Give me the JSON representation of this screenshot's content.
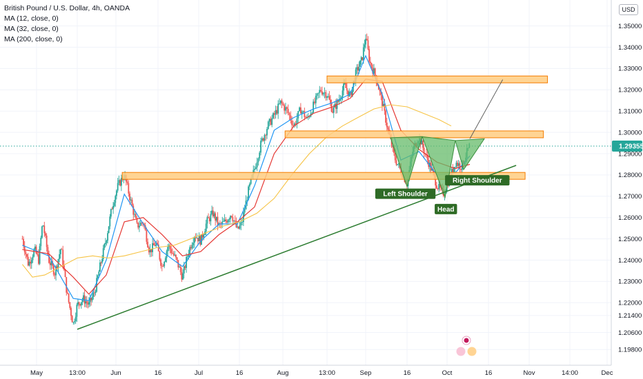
{
  "header": {
    "title": "British Pound / U.S. Dollar, 4h, OANDA",
    "indicators": [
      "MA (12, close, 0)",
      "MA (32, close, 0)",
      "MA (200, close, 0)"
    ],
    "currency": "USD"
  },
  "colors": {
    "up": "#26a69a",
    "down": "#ef5350",
    "ma12": "#2196f3",
    "ma32": "#e53935",
    "ma200": "#f6c344",
    "zone_fill": "#ffcc80",
    "zone_stroke": "#f57c00",
    "pattern_fill": "#66bb6a",
    "pattern_stroke": "#388e3c",
    "trendline": "#2e7d32",
    "label_bg": "#2e6b26",
    "price_tag": "#26a69a"
  },
  "chart_data": {
    "type": "candlestick",
    "title": "British Pound / U.S. Dollar, 4h, OANDA",
    "xlabel": "",
    "ylabel": "",
    "ylim": [
      1.1955,
      1.357
    ],
    "price_axis_ticks": [
      "1.35000",
      "1.34000",
      "1.33000",
      "1.32000",
      "1.31000",
      "1.30000",
      "1.29000",
      "1.28000",
      "1.27000",
      "1.26000",
      "1.25000",
      "1.24000",
      "1.23000",
      "1.22000",
      "1.21400",
      "1.20600",
      "1.19800"
    ],
    "time_axis_ticks": [
      {
        "label": "May",
        "t": 0
      },
      {
        "label": "13:00",
        "t": 1
      },
      {
        "label": "Jun",
        "t": 2
      },
      {
        "label": "16",
        "t": 3
      },
      {
        "label": "Jul",
        "t": 4
      },
      {
        "label": "16",
        "t": 5
      },
      {
        "label": "Aug",
        "t": 6
      },
      {
        "label": "13:00",
        "t": 7
      },
      {
        "label": "Sep",
        "t": 8
      },
      {
        "label": "16",
        "t": 9
      },
      {
        "label": "Oct",
        "t": 10
      },
      {
        "label": "16",
        "t": 11
      },
      {
        "label": "Nov",
        "t": 12
      },
      {
        "label": "14:00",
        "t": 13
      },
      {
        "label": "Dec",
        "t": 14
      }
    ],
    "last_price": {
      "label": "1.29355",
      "value": 1.29355
    },
    "price_path": [
      [
        -0.35,
        1.25
      ],
      [
        -0.2,
        1.238
      ],
      [
        -0.05,
        1.245
      ],
      [
        0.05,
        1.24
      ],
      [
        0.15,
        1.258
      ],
      [
        0.3,
        1.24
      ],
      [
        0.45,
        1.234
      ],
      [
        0.6,
        1.246
      ],
      [
        0.75,
        1.224
      ],
      [
        0.9,
        1.21
      ],
      [
        1.0,
        1.219
      ],
      [
        1.15,
        1.222
      ],
      [
        1.3,
        1.219
      ],
      [
        1.45,
        1.225
      ],
      [
        1.6,
        1.238
      ],
      [
        1.75,
        1.25
      ],
      [
        1.9,
        1.265
      ],
      [
        2.05,
        1.275
      ],
      [
        2.2,
        1.28
      ],
      [
        2.35,
        1.268
      ],
      [
        2.5,
        1.256
      ],
      [
        2.65,
        1.258
      ],
      [
        2.8,
        1.244
      ],
      [
        2.95,
        1.248
      ],
      [
        3.1,
        1.237
      ],
      [
        3.25,
        1.247
      ],
      [
        3.45,
        1.24
      ],
      [
        3.6,
        1.232
      ],
      [
        3.75,
        1.244
      ],
      [
        3.9,
        1.252
      ],
      [
        4.05,
        1.249
      ],
      [
        4.2,
        1.258
      ],
      [
        4.35,
        1.262
      ],
      [
        4.5,
        1.256
      ],
      [
        4.65,
        1.258
      ],
      [
        4.8,
        1.262
      ],
      [
        4.95,
        1.254
      ],
      [
        5.05,
        1.257
      ],
      [
        5.2,
        1.272
      ],
      [
        5.35,
        1.283
      ],
      [
        5.5,
        1.295
      ],
      [
        5.65,
        1.303
      ],
      [
        5.8,
        1.308
      ],
      [
        5.95,
        1.314
      ],
      [
        6.1,
        1.31
      ],
      [
        6.25,
        1.303
      ],
      [
        6.4,
        1.311
      ],
      [
        6.55,
        1.306
      ],
      [
        6.7,
        1.313
      ],
      [
        6.85,
        1.32
      ],
      [
        7.0,
        1.318
      ],
      [
        7.15,
        1.31
      ],
      [
        7.3,
        1.315
      ],
      [
        7.45,
        1.322
      ],
      [
        7.6,
        1.317
      ],
      [
        7.75,
        1.328
      ],
      [
        7.9,
        1.334
      ],
      [
        8.0,
        1.345
      ],
      [
        8.1,
        1.333
      ],
      [
        8.25,
        1.326
      ],
      [
        8.4,
        1.314
      ],
      [
        8.55,
        1.3
      ],
      [
        8.7,
        1.288
      ],
      [
        8.85,
        1.282
      ],
      [
        9.0,
        1.276
      ],
      [
        9.15,
        1.292
      ],
      [
        9.3,
        1.298
      ],
      [
        9.45,
        1.29
      ],
      [
        9.6,
        1.283
      ],
      [
        9.75,
        1.275
      ],
      [
        9.9,
        1.271
      ],
      [
        10.05,
        1.278
      ],
      [
        10.2,
        1.286
      ],
      [
        10.35,
        1.284
      ],
      [
        10.55,
        1.294
      ]
    ],
    "series": [
      {
        "name": "MA (12, close, 0)",
        "color": "#2196f3",
        "points": [
          [
            -0.35,
            1.247
          ],
          [
            0.3,
            1.242
          ],
          [
            0.9,
            1.222
          ],
          [
            1.3,
            1.221
          ],
          [
            1.75,
            1.24
          ],
          [
            2.2,
            1.271
          ],
          [
            2.65,
            1.257
          ],
          [
            3.1,
            1.244
          ],
          [
            3.6,
            1.237
          ],
          [
            4.05,
            1.249
          ],
          [
            4.5,
            1.257
          ],
          [
            4.95,
            1.257
          ],
          [
            5.35,
            1.275
          ],
          [
            5.8,
            1.301
          ],
          [
            6.25,
            1.307
          ],
          [
            6.7,
            1.311
          ],
          [
            7.15,
            1.314
          ],
          [
            7.6,
            1.318
          ],
          [
            8.0,
            1.336
          ],
          [
            8.4,
            1.318
          ],
          [
            8.85,
            1.287
          ],
          [
            9.3,
            1.291
          ],
          [
            9.75,
            1.28
          ],
          [
            10.2,
            1.281
          ],
          [
            10.55,
            1.289
          ]
        ]
      },
      {
        "name": "MA (32, close, 0)",
        "color": "#e53935",
        "points": [
          [
            -0.35,
            1.245
          ],
          [
            0.3,
            1.243
          ],
          [
            0.9,
            1.232
          ],
          [
            1.3,
            1.224
          ],
          [
            1.75,
            1.233
          ],
          [
            2.2,
            1.258
          ],
          [
            2.65,
            1.26
          ],
          [
            3.1,
            1.252
          ],
          [
            3.6,
            1.242
          ],
          [
            4.05,
            1.244
          ],
          [
            4.5,
            1.252
          ],
          [
            4.95,
            1.258
          ],
          [
            5.35,
            1.265
          ],
          [
            5.8,
            1.29
          ],
          [
            6.25,
            1.303
          ],
          [
            6.7,
            1.309
          ],
          [
            7.15,
            1.312
          ],
          [
            7.6,
            1.316
          ],
          [
            8.0,
            1.325
          ],
          [
            8.4,
            1.324
          ],
          [
            8.85,
            1.301
          ],
          [
            9.3,
            1.292
          ],
          [
            9.75,
            1.286
          ],
          [
            10.2,
            1.283
          ],
          [
            10.55,
            1.285
          ]
        ]
      },
      {
        "name": "MA (200, close, 0)",
        "color": "#f6c344",
        "points": [
          [
            -0.35,
            1.238
          ],
          [
            -0.1,
            1.232
          ],
          [
            0.2,
            1.233
          ],
          [
            0.6,
            1.237
          ],
          [
            1.0,
            1.241
          ],
          [
            1.4,
            1.242
          ],
          [
            1.8,
            1.241
          ],
          [
            2.2,
            1.242
          ],
          [
            2.6,
            1.244
          ],
          [
            3.0,
            1.246
          ],
          [
            3.4,
            1.247
          ],
          [
            3.8,
            1.25
          ],
          [
            4.2,
            1.253
          ],
          [
            4.6,
            1.256
          ],
          [
            5.0,
            1.258
          ],
          [
            5.4,
            1.262
          ],
          [
            5.8,
            1.269
          ],
          [
            6.2,
            1.28
          ],
          [
            6.6,
            1.29
          ],
          [
            7.0,
            1.298
          ],
          [
            7.4,
            1.303
          ],
          [
            7.8,
            1.307
          ],
          [
            8.2,
            1.311
          ],
          [
            8.6,
            1.313
          ],
          [
            9.0,
            1.312
          ],
          [
            9.4,
            1.309
          ],
          [
            9.8,
            1.306
          ],
          [
            10.1,
            1.303
          ]
        ]
      }
    ],
    "annotations": {
      "zones": [
        {
          "t_start": 7.0,
          "t_end": 12.45,
          "top": 1.3265,
          "bottom": 1.3245
        },
        {
          "t_start": 6.05,
          "t_end": 12.35,
          "top": 1.3007,
          "bottom": 1.2987
        },
        {
          "t_start": 2.15,
          "t_end": 11.9,
          "top": 1.2812,
          "bottom": 1.2792
        }
      ],
      "trendline": [
        {
          "t": 1.0,
          "v": 1.2075
        },
        {
          "t": 11.68,
          "v": 1.2845
        }
      ],
      "projection": [
        {
          "t": 10.55,
          "v": 1.297
        },
        {
          "t": 11.35,
          "v": 1.3248
        }
      ],
      "pattern_polygons": [
        [
          {
            "t": 8.6,
            "v": 1.2975
          },
          {
            "t": 9.0,
            "v": 1.2745
          },
          {
            "t": 9.38,
            "v": 1.298
          }
        ],
        [
          {
            "t": 9.38,
            "v": 1.298
          },
          {
            "t": 9.95,
            "v": 1.2695
          },
          {
            "t": 10.2,
            "v": 1.2962
          }
        ],
        [
          {
            "t": 10.2,
            "v": 1.2962
          },
          {
            "t": 10.4,
            "v": 1.2825
          },
          {
            "t": 10.9,
            "v": 1.297
          }
        ]
      ],
      "labels": [
        {
          "text": "Left Shoulder",
          "t": 8.96,
          "v": 1.2712
        },
        {
          "text": "Head",
          "t": 9.97,
          "v": 1.264
        },
        {
          "text": "Right Shoulder",
          "t": 10.73,
          "v": 1.2775
        }
      ]
    },
    "grid": true,
    "legend": "top-left"
  }
}
